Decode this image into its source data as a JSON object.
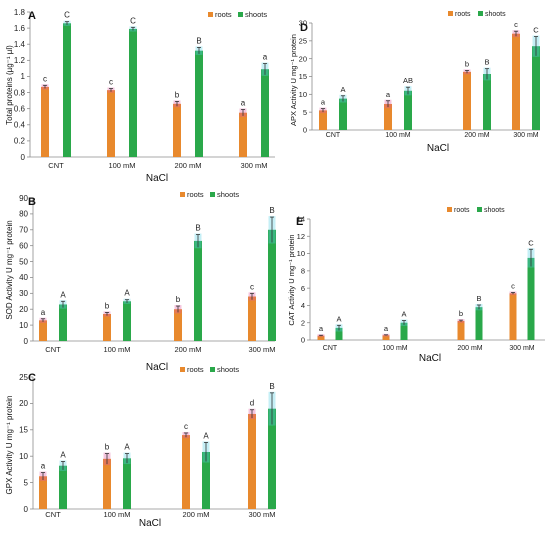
{
  "figure": {
    "colors": {
      "roots": "#e8892d",
      "roots_light": "#f39a3d",
      "shoots": "#2aa84a",
      "errbar_roots": "#e05aa0",
      "errbar_shoots": "#5ad0e6",
      "axis": "#8c8c8c"
    }
  },
  "chart_data": [
    {
      "id": "A",
      "type": "bar",
      "panel_label": "A",
      "categories": [
        "CNT",
        "100 mM",
        "200 mM",
        "300 mM"
      ],
      "xlabel": "NaCl",
      "ylabel": "Total proteins (µg⁻¹ µl)",
      "ylim": [
        0,
        1.8
      ],
      "yticks": [
        0,
        0.2,
        0.4,
        0.6,
        0.8,
        1,
        1.2,
        1.4,
        1.6,
        1.8
      ],
      "ytick_labels": [
        "0",
        "0.2",
        "0.4",
        "0.6",
        "0.8",
        "1",
        "1.2",
        "1.4",
        "1.6",
        "1.8"
      ],
      "legend": [
        "roots",
        "shoots"
      ],
      "series": [
        {
          "name": "roots",
          "values": [
            0.87,
            0.83,
            0.66,
            0.55
          ],
          "errors": [
            0.02,
            0.02,
            0.03,
            0.04
          ],
          "letters": [
            "c",
            "c",
            "b",
            "a"
          ]
        },
        {
          "name": "shoots",
          "values": [
            1.66,
            1.59,
            1.32,
            1.09
          ],
          "errors": [
            0.02,
            0.02,
            0.04,
            0.07
          ],
          "letters": [
            "C",
            "C",
            "B",
            "a"
          ]
        }
      ]
    },
    {
      "id": "B",
      "type": "bar",
      "panel_label": "B",
      "categories": [
        "CNT",
        "100 mM",
        "200 mM",
        "300 mM"
      ],
      "xlabel": "NaCl",
      "ylabel": "SOD Activity U mg⁻¹ protein",
      "ylim": [
        0,
        90
      ],
      "yticks": [
        0,
        10,
        20,
        30,
        40,
        50,
        60,
        70,
        80,
        90
      ],
      "ytick_labels": [
        "0",
        "10",
        "20",
        "30",
        "40",
        "50",
        "60",
        "70",
        "80",
        "90"
      ],
      "legend": [
        "roots",
        "shoots"
      ],
      "series": [
        {
          "name": "roots",
          "values": [
            13,
            17,
            20,
            28
          ],
          "errors": [
            1,
            1,
            2,
            2
          ],
          "letters": [
            "a",
            "b",
            "b",
            "c"
          ]
        },
        {
          "name": "shoots",
          "values": [
            23,
            25,
            63,
            70
          ],
          "errors": [
            2,
            1,
            4,
            8
          ],
          "letters": [
            "A",
            "A",
            "B",
            "B"
          ]
        }
      ]
    },
    {
      "id": "C",
      "type": "bar",
      "panel_label": "C",
      "categories": [
        "CNT",
        "100 mM",
        "200 mM",
        "300 mM"
      ],
      "xlabel": "NaCl",
      "ylabel": "GPX Activity U mg⁻¹ protein",
      "ylim": [
        0,
        25
      ],
      "yticks": [
        0,
        5,
        10,
        15,
        20,
        25
      ],
      "ytick_labels": [
        "0",
        "5",
        "10",
        "15",
        "20",
        "25"
      ],
      "legend": [
        "roots",
        "shoots"
      ],
      "series": [
        {
          "name": "roots",
          "values": [
            6.2,
            9.5,
            14,
            18
          ],
          "errors": [
            0.7,
            1.0,
            0.4,
            0.8
          ],
          "letters": [
            "a",
            "b",
            "c",
            "d"
          ]
        },
        {
          "name": "shoots",
          "values": [
            8.2,
            9.6,
            10.8,
            19
          ],
          "errors": [
            0.8,
            0.9,
            1.8,
            3.0
          ],
          "letters": [
            "A",
            "A",
            "A",
            "B"
          ]
        }
      ]
    },
    {
      "id": "D",
      "type": "bar",
      "panel_label": "D",
      "categories": [
        "CNT",
        "100 mM",
        "200 mM",
        "300 mM"
      ],
      "xlabel": "NaCl",
      "ylabel": "APX Activity U mg⁻¹ protein",
      "ylim": [
        0,
        30
      ],
      "yticks": [
        0,
        5,
        10,
        15,
        20,
        25,
        30
      ],
      "ytick_labels": [
        "0",
        "5",
        "10",
        "15",
        "20",
        "25",
        "30"
      ],
      "legend": [
        "roots",
        "shoots"
      ],
      "series": [
        {
          "name": "roots",
          "values": [
            5.5,
            7.3,
            16.3,
            27
          ],
          "errors": [
            0.5,
            0.9,
            0.4,
            0.7
          ],
          "letters": [
            "a",
            "a",
            "b",
            "c"
          ]
        },
        {
          "name": "shoots",
          "values": [
            8.8,
            11,
            15.7,
            23.5
          ],
          "errors": [
            0.8,
            1.0,
            1.5,
            2.7
          ],
          "letters": [
            "A",
            "AB",
            "B",
            "C"
          ]
        }
      ]
    },
    {
      "id": "E",
      "type": "bar",
      "panel_label": "E",
      "categories": [
        "CNT",
        "100 mM",
        "200 mM",
        "300 mM"
      ],
      "xlabel": "NaCl",
      "ylabel": "CAT Activity U mg⁻¹ protein",
      "ylim": [
        0,
        14
      ],
      "yticks": [
        0,
        2,
        4,
        6,
        8,
        10,
        12,
        14
      ],
      "ytick_labels": [
        "0",
        "2",
        "4",
        "6",
        "8",
        "10",
        "12",
        "14"
      ],
      "legend": [
        "roots",
        "shoots"
      ],
      "series": [
        {
          "name": "roots",
          "values": [
            0.5,
            0.55,
            2.2,
            5.4
          ],
          "errors": [
            0.05,
            0.05,
            0.1,
            0.1
          ],
          "letters": [
            "a",
            "a",
            "b",
            "c"
          ]
        },
        {
          "name": "shoots",
          "values": [
            1.4,
            2.0,
            3.8,
            9.5
          ],
          "errors": [
            0.3,
            0.25,
            0.25,
            1.0
          ],
          "letters": [
            "A",
            "A",
            "B",
            "C"
          ]
        }
      ]
    }
  ]
}
